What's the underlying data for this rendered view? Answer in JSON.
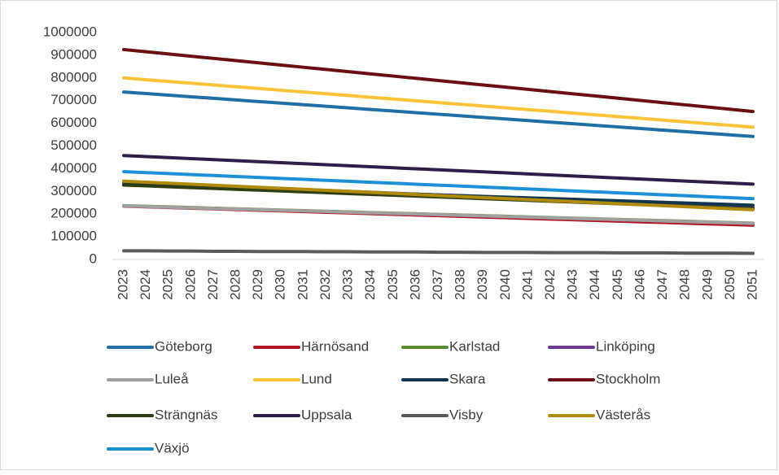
{
  "chart_data": {
    "type": "line",
    "categories": [
      "2023",
      "2024",
      "2025",
      "2026",
      "2027",
      "2028",
      "2029",
      "2030",
      "2031",
      "2032",
      "2033",
      "2034",
      "2035",
      "2036",
      "2037",
      "2038",
      "2039",
      "2040",
      "2041",
      "2042",
      "2043",
      "2044",
      "2045",
      "2046",
      "2047",
      "2048",
      "2049",
      "2050",
      "2051"
    ],
    "ylim": [
      0,
      1000000
    ],
    "yticks": [
      0,
      100000,
      200000,
      300000,
      400000,
      500000,
      600000,
      700000,
      800000,
      900000,
      1000000
    ],
    "legend": "bottom",
    "series": [
      {
        "name": "Göteborg",
        "color": "#1f6ea6",
        "values": [
          738000,
          731000,
          724000,
          717000,
          710000,
          703000,
          696000,
          689000,
          682000,
          675000,
          668000,
          661000,
          654000,
          647000,
          640000,
          633000,
          626000,
          619000,
          612000,
          605000,
          598000,
          591000,
          584000,
          577000,
          570000,
          563000,
          556000,
          549000,
          542000
        ]
      },
      {
        "name": "Härnösand",
        "color": "#b0172a",
        "values": [
          235000,
          232000,
          229000,
          226000,
          223000,
          220000,
          217000,
          214000,
          211000,
          208000,
          205000,
          202000,
          199000,
          196000,
          193000,
          190000,
          187000,
          184000,
          181000,
          178000,
          175000,
          172000,
          169000,
          166000,
          163000,
          160000,
          157000,
          154000,
          151000
        ]
      },
      {
        "name": "Karlstad",
        "color": "#5b8a2a",
        "values": [
          237000,
          234250,
          231500,
          228750,
          226000,
          223250,
          220500,
          217750,
          215000,
          212250,
          209500,
          206750,
          204000,
          201250,
          198500,
          195750,
          193000,
          190250,
          187500,
          184750,
          182000,
          179250,
          176500,
          173750,
          171000,
          168250,
          165500,
          162750,
          160000
        ]
      },
      {
        "name": "Linköping",
        "color": "#6a3d9a",
        "values": [
          340000,
          336000,
          332000,
          328000,
          324000,
          320000,
          316000,
          312000,
          308000,
          304000,
          300000,
          296000,
          292000,
          288000,
          284000,
          280000,
          276000,
          272000,
          268000,
          264000,
          260000,
          256000,
          252000,
          248000,
          244000,
          240000,
          236000,
          232000,
          228000
        ]
      },
      {
        "name": "Luleå",
        "color": "#a0a0a0",
        "values": [
          236000,
          233250,
          230500,
          227750,
          225000,
          222250,
          219500,
          216750,
          214000,
          211250,
          208500,
          205750,
          203000,
          200250,
          197500,
          194750,
          192000,
          189250,
          186500,
          183750,
          181000,
          178250,
          175500,
          172750,
          170000,
          167250,
          164500,
          161750,
          159000
        ]
      },
      {
        "name": "Lund",
        "color": "#fcc33a",
        "values": [
          800000,
          792250,
          784500,
          776750,
          769000,
          761250,
          753500,
          745750,
          738000,
          730250,
          722500,
          714750,
          707000,
          699250,
          691500,
          683750,
          676000,
          668250,
          660500,
          652750,
          645000,
          637250,
          629500,
          621750,
          614000,
          606250,
          598500,
          590750,
          583000
        ]
      },
      {
        "name": "Skara",
        "color": "#12344f",
        "values": [
          330000,
          326750,
          323500,
          320250,
          317000,
          313750,
          310500,
          307250,
          304000,
          300750,
          297500,
          294250,
          291000,
          287750,
          284500,
          281250,
          278000,
          274750,
          271500,
          268250,
          265000,
          261750,
          258500,
          255250,
          252000,
          248750,
          245500,
          242250,
          239000
        ]
      },
      {
        "name": "Stockholm",
        "color": "#6b0f14",
        "values": [
          925000,
          915250,
          905500,
          895750,
          886000,
          876250,
          866500,
          856750,
          847000,
          837250,
          827500,
          817750,
          808000,
          798250,
          788500,
          778750,
          769000,
          759250,
          749500,
          739750,
          730000,
          720250,
          710500,
          700750,
          691000,
          681250,
          671500,
          661750,
          652000
        ]
      },
      {
        "name": "Strängnäs",
        "color": "#2f3d14",
        "values": [
          328000,
          324250,
          320500,
          316750,
          313000,
          309250,
          305500,
          301750,
          298000,
          294250,
          290500,
          286750,
          283000,
          279250,
          275500,
          271750,
          268000,
          264250,
          260500,
          256750,
          253000,
          249250,
          245500,
          241750,
          238000,
          234250,
          230500,
          226750,
          223000
        ]
      },
      {
        "name": "Uppsala",
        "color": "#2e1f4a",
        "values": [
          458000,
          453500,
          449000,
          444500,
          440000,
          435500,
          431000,
          426500,
          422000,
          417500,
          413000,
          408500,
          404000,
          399500,
          395000,
          390500,
          386000,
          381500,
          377000,
          372500,
          368000,
          363500,
          359000,
          354500,
          350000,
          345500,
          341000,
          336500,
          332000
        ]
      },
      {
        "name": "Visby",
        "color": "#5a5a5a",
        "values": [
          38000,
          38000,
          37000,
          37000,
          36000,
          36000,
          35000,
          35000,
          35000,
          34000,
          34000,
          33000,
          33000,
          33000,
          32000,
          32000,
          31000,
          31000,
          31000,
          30000,
          30000,
          30000,
          29000,
          29000,
          29000,
          28000,
          28000,
          28000,
          27000
        ]
      },
      {
        "name": "Västerås",
        "color": "#b08a0a",
        "values": [
          345000,
          340500,
          336000,
          331500,
          327000,
          322500,
          318000,
          313500,
          309000,
          304500,
          300000,
          295500,
          291000,
          286500,
          282000,
          277500,
          273000,
          268500,
          264000,
          259500,
          255000,
          250500,
          246000,
          241500,
          237000,
          232500,
          228000,
          223500,
          219000
        ]
      },
      {
        "name": "Växjö",
        "color": "#1e90d8",
        "values": [
          387000,
          382750,
          378500,
          374250,
          370000,
          365750,
          361500,
          357250,
          353000,
          348750,
          344500,
          340250,
          336000,
          331750,
          327500,
          323250,
          319000,
          314750,
          310500,
          306250,
          302000,
          297750,
          293500,
          289250,
          285000,
          280750,
          276500,
          272250,
          268000
        ]
      }
    ]
  }
}
